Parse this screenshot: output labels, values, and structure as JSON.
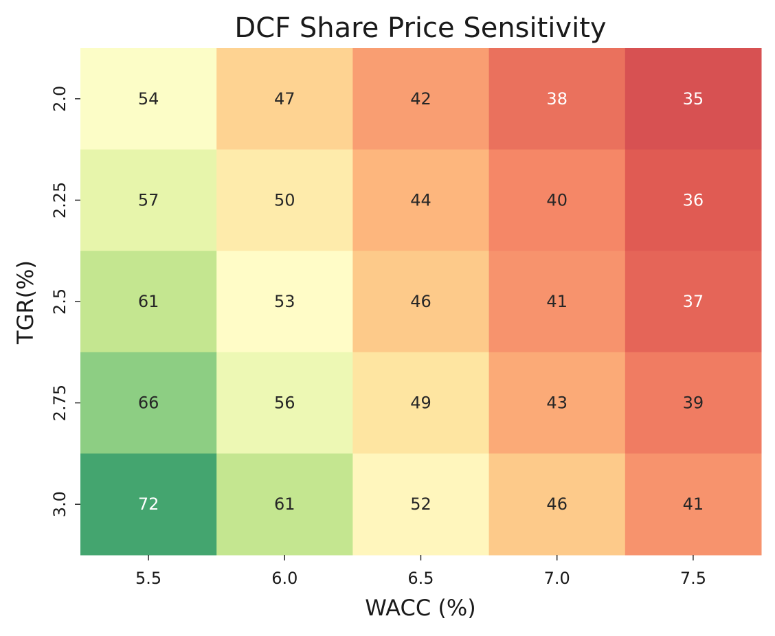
{
  "chart_data": {
    "type": "heatmap",
    "title": "DCF Share Price Sensitivity",
    "xlabel": "WACC (%)",
    "ylabel": "TGR(%)",
    "x_categories": [
      "5.5",
      "6.0",
      "6.5",
      "7.0",
      "7.5"
    ],
    "y_categories": [
      "2.0",
      "2.25",
      "2.5",
      "2.75",
      "3.0"
    ],
    "values": [
      [
        54,
        47,
        42,
        38,
        35
      ],
      [
        57,
        50,
        44,
        40,
        36
      ],
      [
        61,
        53,
        46,
        41,
        37
      ],
      [
        66,
        56,
        49,
        43,
        39
      ],
      [
        72,
        61,
        52,
        46,
        41
      ]
    ],
    "colormap": "RdYlGn",
    "colorbar": false,
    "annotations": true
  }
}
